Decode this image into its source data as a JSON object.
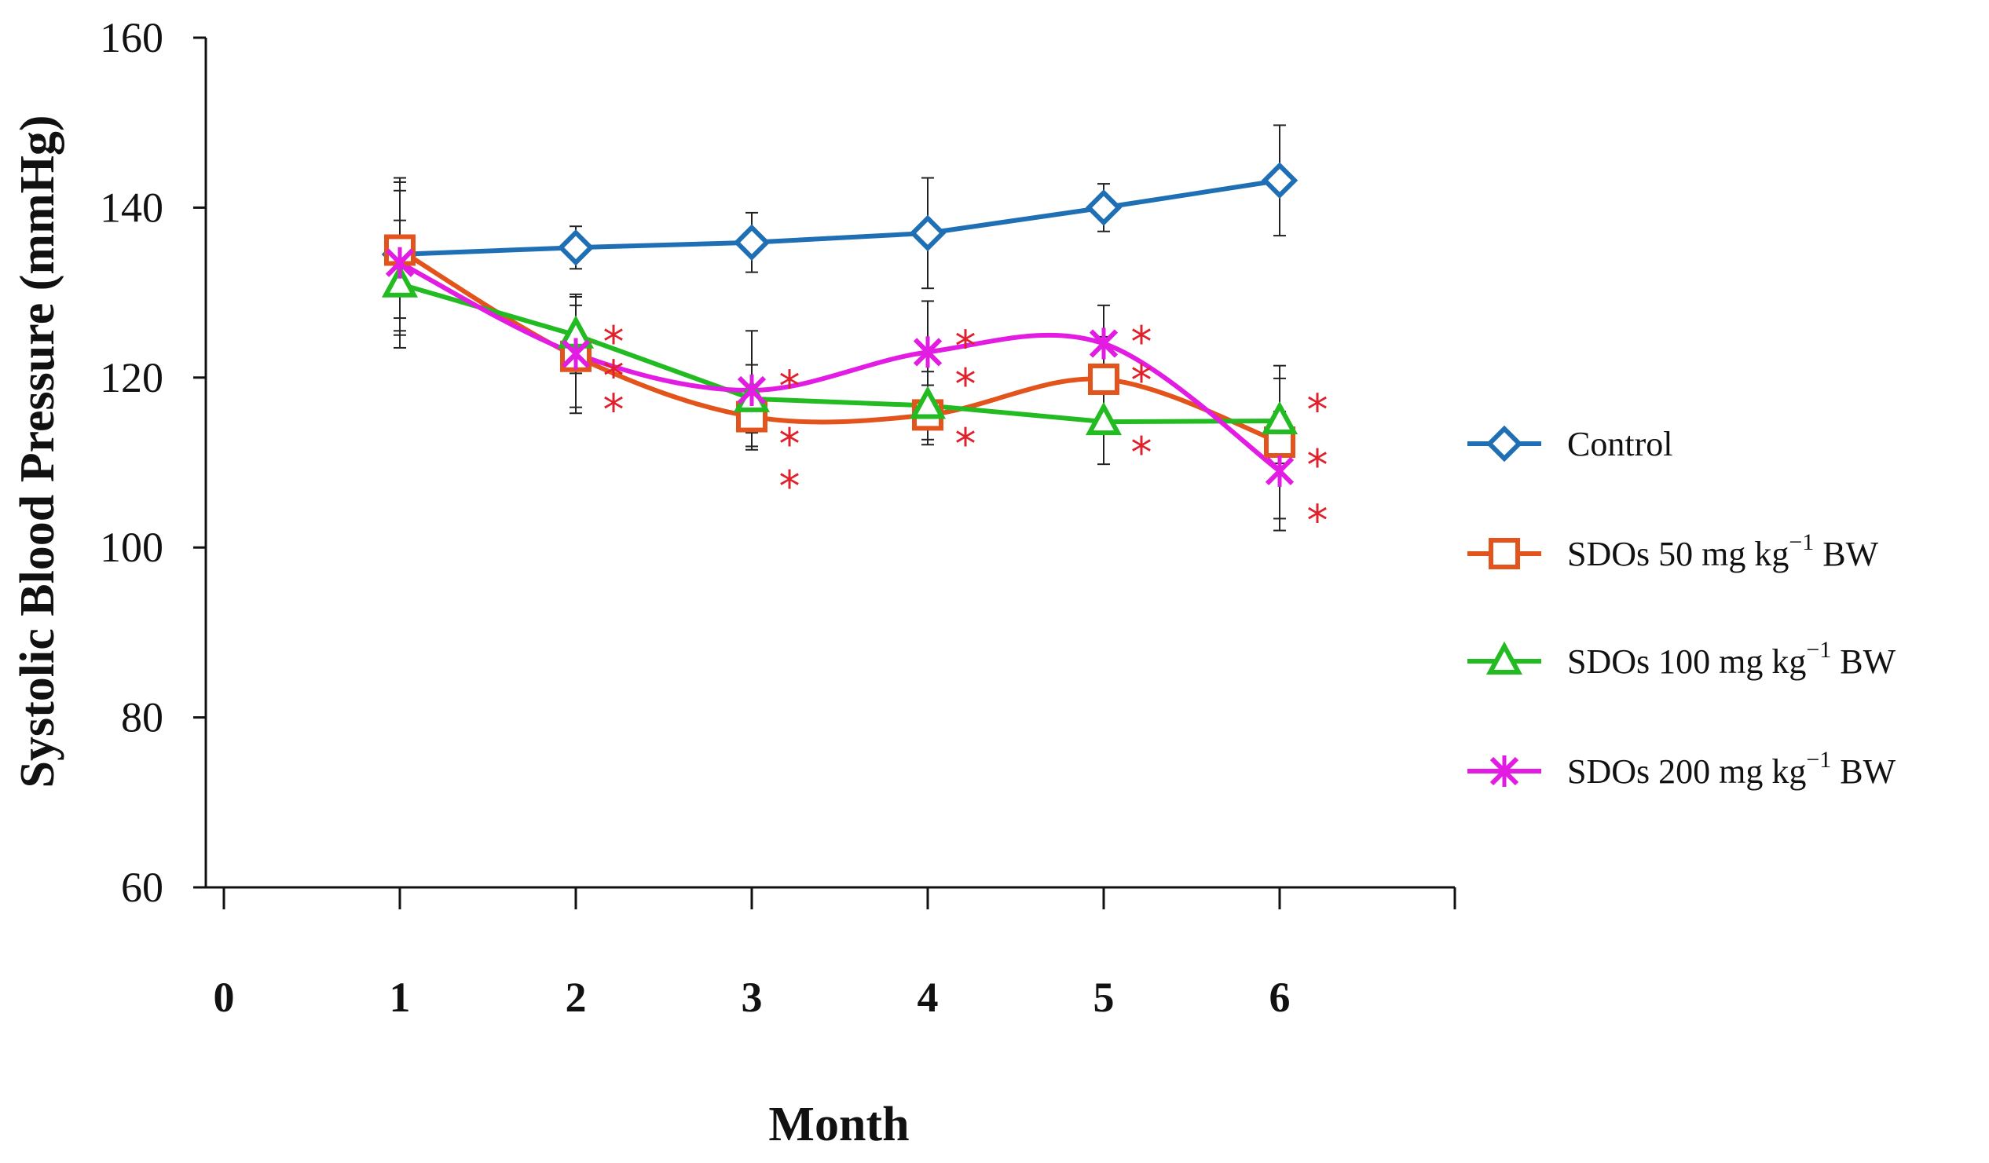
{
  "chart_data": {
    "type": "line",
    "title": "",
    "xlabel": "Month",
    "ylabel": "Systolic Blood Pressure (mmHg)",
    "x_ticks": [
      "0",
      "1",
      "2",
      "3",
      "4",
      "5",
      "6"
    ],
    "y_ticks": [
      "60",
      "80",
      "100",
      "120",
      "140",
      "160"
    ],
    "xlim": [
      0,
      7
    ],
    "ylim": [
      60,
      160
    ],
    "x": [
      1,
      2,
      3,
      4,
      5,
      6
    ],
    "legend_position": "right",
    "series": [
      {
        "name": "Control",
        "legend": {
          "prefix": "Control",
          "sup": "",
          "suffix": ""
        },
        "color": "#1f6fb4",
        "marker": "diamond",
        "smooth": false,
        "values": [
          134.5,
          135.3,
          135.9,
          137,
          140,
          143.2
        ],
        "error": [
          9,
          2.5,
          3.5,
          6.5,
          2.8,
          6.5
        ]
      },
      {
        "name": "SDOs 50 mg kg-1 BW",
        "legend": {
          "prefix": "SDOs 50 mg kg",
          "sup": "−1",
          "suffix": " BW"
        },
        "color": "#e2541c",
        "marker": "square",
        "smooth": true,
        "values": [
          135,
          122.5,
          115.4,
          115.6,
          119.8,
          112.4
        ],
        "error": [
          8,
          6,
          3.5,
          3.5,
          5,
          9
        ]
      },
      {
        "name": "SDOs 100 mg kg-1 BW",
        "legend": {
          "prefix": "SDOs 100 mg kg",
          "sup": "−1",
          "suffix": " BW"
        },
        "color": "#22bb22",
        "marker": "triangle",
        "smooth": false,
        "values": [
          131,
          125,
          117.5,
          116.7,
          114.8,
          114.9
        ],
        "error": [
          7.5,
          4.5,
          4,
          4,
          5,
          5
        ]
      },
      {
        "name": "SDOs 200 mg kg-1 BW",
        "legend": {
          "prefix": "SDOs 200 mg kg",
          "sup": "−1",
          "suffix": " BW"
        },
        "color": "#e21ce2",
        "marker": "x",
        "smooth": true,
        "values": [
          133.5,
          122.8,
          118.5,
          123,
          124,
          109
        ],
        "error": [
          8.5,
          7,
          7,
          6,
          4.5,
          7
        ]
      }
    ],
    "annotations": [
      {
        "x": 2,
        "stars": [
          124.5,
          120.5,
          116.5
        ]
      },
      {
        "x": 3,
        "stars": [
          119.3,
          112.5,
          107.5
        ]
      },
      {
        "x": 4,
        "stars": [
          124,
          119.5,
          112.5
        ]
      },
      {
        "x": 5,
        "stars": [
          124.5,
          120,
          111.5
        ]
      },
      {
        "x": 6,
        "stars": [
          116.5,
          110,
          103.5
        ]
      }
    ],
    "star_symbol": "*"
  }
}
